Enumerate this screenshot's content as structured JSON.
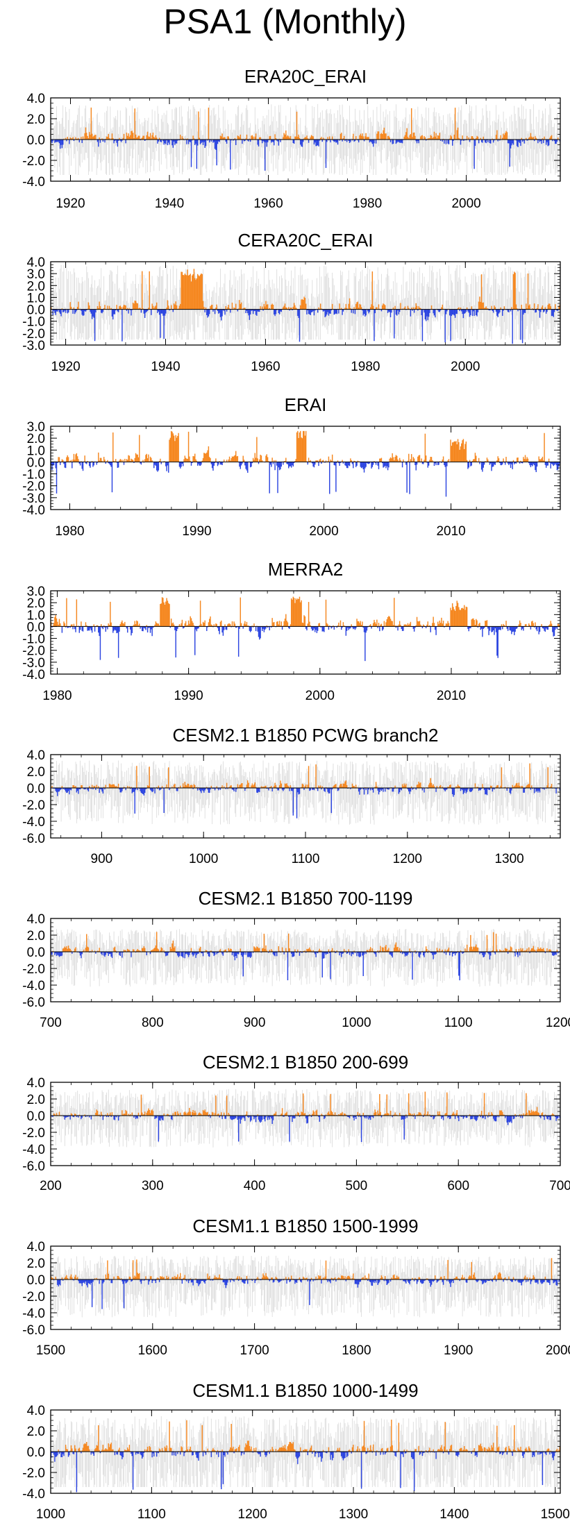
{
  "page": {
    "title": "PSA1 (Monthly)"
  },
  "colors": {
    "positive": "#F5871F",
    "negative": "#2B44E0",
    "envelope": "#B8B8B8",
    "axis": "#000000"
  },
  "chart_data": [
    {
      "type": "bar",
      "title": "ERA20C_ERAI",
      "xlim": [
        1916,
        2019
      ],
      "ylim": [
        -4,
        4
      ],
      "yticks": [
        4,
        2,
        0,
        -2,
        -4
      ],
      "ytick_labels": [
        "4.0",
        "2.0",
        "0.0",
        "-2.0",
        "-4.0"
      ],
      "xticks": [
        1920,
        1940,
        1960,
        1980,
        2000
      ],
      "xtick_labels": [
        "1920",
        "1940",
        "1960",
        "1980",
        "2000"
      ],
      "series_description": "monthly PSA1 index with faint grey ensemble envelope",
      "pos_max": 3.1,
      "neg_min": -3.0,
      "envelope": true,
      "seed": 11,
      "events": []
    },
    {
      "type": "bar",
      "title": "CERA20C_ERAI",
      "xlim": [
        1917,
        2019
      ],
      "ylim": [
        -3,
        4
      ],
      "yticks": [
        4,
        3,
        2,
        1,
        0,
        -1,
        -2,
        -3
      ],
      "ytick_labels": [
        "4.0",
        "3.0",
        "2.0",
        "1.0",
        "0.0",
        "-1.0",
        "-2.0",
        "-3.0"
      ],
      "xticks": [
        1920,
        1940,
        1960,
        1980,
        2000
      ],
      "xtick_labels": [
        "1920",
        "1940",
        "1960",
        "1980",
        "2000"
      ],
      "series_description": "monthly PSA1 index with faint grey ensemble envelope",
      "pos_max": 3.4,
      "neg_min": -2.9,
      "envelope": true,
      "seed": 23,
      "events": [
        [
          1943.0,
          1947.5,
          2.2
        ]
      ]
    },
    {
      "type": "bar",
      "title": "ERAI",
      "xlim": [
        1978.5,
        2018.6
      ],
      "ylim": [
        -4,
        3
      ],
      "yticks": [
        3,
        2,
        1,
        0,
        -1,
        -2,
        -3,
        -4
      ],
      "ytick_labels": [
        "3.0",
        "2.0",
        "1.0",
        "0.0",
        "-1.0",
        "-2.0",
        "-3.0",
        "-4.0"
      ],
      "xticks": [
        1980,
        1990,
        2000,
        2010
      ],
      "xtick_labels": [
        "1980",
        "1990",
        "2000",
        "2010"
      ],
      "series_description": "monthly PSA1 index",
      "pos_max": 2.6,
      "neg_min": -3.0,
      "envelope": false,
      "seed": 37,
      "events": [
        [
          1987.8,
          1988.6,
          1.6
        ],
        [
          1997.8,
          1998.6,
          1.8
        ],
        [
          2009.9,
          2011.2,
          1.0
        ]
      ]
    },
    {
      "type": "bar",
      "title": "MERRA2",
      "xlim": [
        1979.5,
        2018.3
      ],
      "ylim": [
        -4,
        3
      ],
      "yticks": [
        3,
        2,
        1,
        0,
        -1,
        -2,
        -3,
        -4
      ],
      "ytick_labels": [
        "3.0",
        "2.0",
        "1.0",
        "0.0",
        "-1.0",
        "-2.0",
        "-3.0",
        "-4.0"
      ],
      "xticks": [
        1980,
        1990,
        2000,
        2010
      ],
      "xtick_labels": [
        "1980",
        "1990",
        "2000",
        "2010"
      ],
      "series_description": "monthly PSA1 index",
      "pos_max": 2.5,
      "neg_min": -2.9,
      "envelope": false,
      "seed": 41,
      "events": [
        [
          1987.8,
          1988.6,
          1.5
        ],
        [
          1997.8,
          1998.6,
          1.8
        ],
        [
          2009.9,
          2011.2,
          1.0
        ]
      ]
    },
    {
      "type": "bar",
      "title": "CESM2.1 B1850 PCWG branch2",
      "xlim": [
        850,
        1350
      ],
      "ylim": [
        -6,
        4
      ],
      "yticks": [
        4,
        2,
        0,
        -2,
        -4,
        -6
      ],
      "ytick_labels": [
        "4.0",
        "2.0",
        "0.0",
        "-2.0",
        "-4.0",
        "-6.0"
      ],
      "xticks": [
        900,
        1000,
        1100,
        1200,
        1300
      ],
      "xtick_labels": [
        "900",
        "1000",
        "1100",
        "1200",
        "1300"
      ],
      "series_description": "monthly PSA1 index with faint grey envelope",
      "pos_max": 3.0,
      "neg_min": -3.7,
      "envelope": true,
      "seed": 53,
      "events": []
    },
    {
      "type": "bar",
      "title": "CESM2.1 B1850 700-1199",
      "xlim": [
        700,
        1200
      ],
      "ylim": [
        -6,
        4
      ],
      "yticks": [
        4,
        2,
        0,
        -2,
        -4,
        -6
      ],
      "ytick_labels": [
        "4.0",
        "2.0",
        "0.0",
        "-2.0",
        "-4.0",
        "-6.0"
      ],
      "xticks": [
        700,
        800,
        900,
        1000,
        1100,
        1200
      ],
      "xtick_labels": [
        "700",
        "800",
        "900",
        "1000",
        "1100",
        "1200"
      ],
      "series_description": "monthly PSA1 index with faint grey envelope",
      "pos_max": 2.5,
      "neg_min": -3.5,
      "envelope": true,
      "seed": 67,
      "events": []
    },
    {
      "type": "bar",
      "title": "CESM2.1 B1850 200-699",
      "xlim": [
        200,
        700
      ],
      "ylim": [
        -6,
        4
      ],
      "yticks": [
        4,
        2,
        0,
        -2,
        -4,
        -6
      ],
      "ytick_labels": [
        "4.0",
        "2.0",
        "0.0",
        "-2.0",
        "-4.0",
        "-6.0"
      ],
      "xticks": [
        200,
        300,
        400,
        500,
        600,
        700
      ],
      "xtick_labels": [
        "200",
        "300",
        "400",
        "500",
        "600",
        "700"
      ],
      "series_description": "monthly PSA1 index with faint grey envelope",
      "pos_max": 2.9,
      "neg_min": -3.2,
      "envelope": true,
      "seed": 71,
      "events": []
    },
    {
      "type": "bar",
      "title": "CESM1.1 B1850 1500-1999",
      "xlim": [
        1500,
        2000
      ],
      "ylim": [
        -6,
        4
      ],
      "yticks": [
        4,
        2,
        0,
        -2,
        -4,
        -6
      ],
      "ytick_labels": [
        "4.0",
        "2.0",
        "0.0",
        "-2.0",
        "-4.0",
        "-6.0"
      ],
      "xticks": [
        1500,
        1600,
        1700,
        1800,
        1900,
        2000
      ],
      "xtick_labels": [
        "1500",
        "1600",
        "1700",
        "1800",
        "1900",
        "2000"
      ],
      "series_description": "monthly PSA1 index with faint grey envelope",
      "pos_max": 2.6,
      "neg_min": -3.8,
      "envelope": true,
      "seed": 83,
      "events": []
    },
    {
      "type": "bar",
      "title": "CESM1.1 B1850 1000-1499",
      "xlim": [
        1000,
        1505
      ],
      "ylim": [
        -4,
        4
      ],
      "yticks": [
        4,
        2,
        0,
        -2,
        -4
      ],
      "ytick_labels": [
        "4.0",
        "2.0",
        "0.0",
        "-2.0",
        "-4.0"
      ],
      "xticks": [
        1000,
        1100,
        1200,
        1300,
        1400,
        1500
      ],
      "xtick_labels": [
        "1000",
        "1100",
        "1200",
        "1300",
        "1400",
        "1500"
      ],
      "series_description": "monthly PSA1 index with faint grey envelope",
      "pos_max": 3.1,
      "neg_min": -3.9,
      "envelope": true,
      "seed": 97,
      "events": []
    }
  ]
}
